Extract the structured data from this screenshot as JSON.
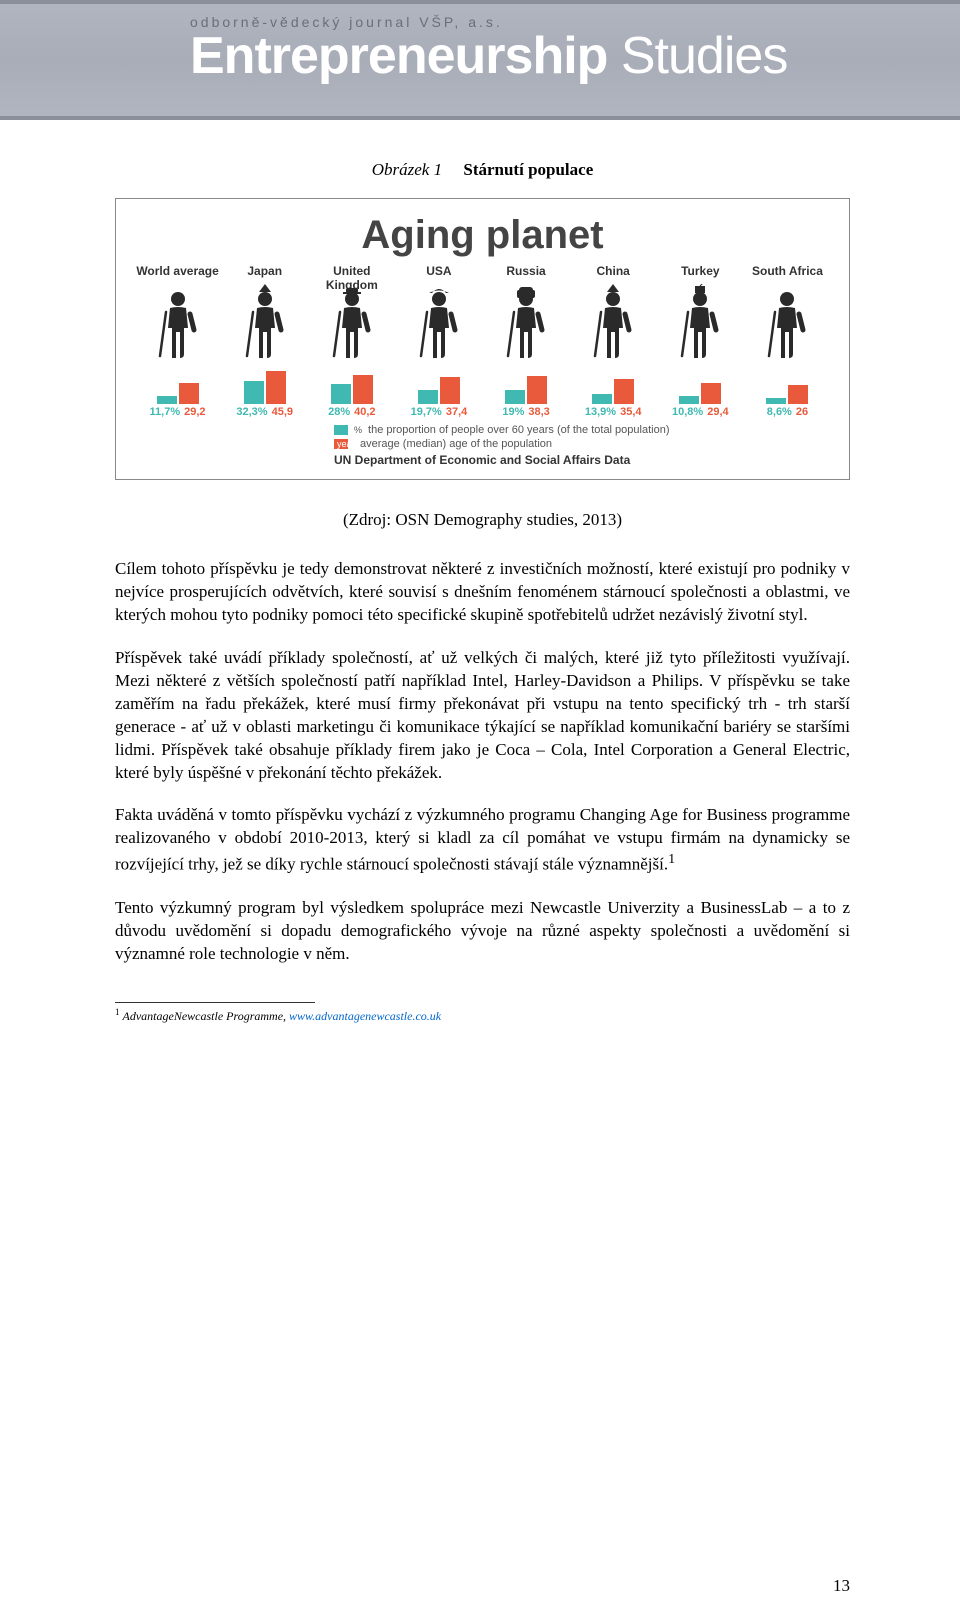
{
  "header": {
    "subtitle": "odborně-vědecký journal VŠP, a.s.",
    "title_part1": "Entrepreneurship",
    "title_part2": "Studies"
  },
  "figure": {
    "label": "Obrázek 1",
    "title": "Stárnutí populace"
  },
  "infographic": {
    "title": "Aging planet",
    "max_age": 50,
    "colors": {
      "proportion": "#3fb9b1",
      "age": "#e85a3b",
      "icon": "#2a2a2a"
    },
    "countries": [
      {
        "name": "World average",
        "proportion": 11.7,
        "age": 29.2,
        "hat": "none"
      },
      {
        "name": "Japan",
        "proportion": 32.3,
        "age": 45.9,
        "hat": "cone"
      },
      {
        "name": "United Kingdom",
        "proportion": 28.0,
        "age": 40.2,
        "hat": "bowler"
      },
      {
        "name": "USA",
        "proportion": 19.7,
        "age": 37.4,
        "hat": "cowboy"
      },
      {
        "name": "Russia",
        "proportion": 19.0,
        "age": 38.3,
        "hat": "ushanka"
      },
      {
        "name": "China",
        "proportion": 13.9,
        "age": 35.4,
        "hat": "cone"
      },
      {
        "name": "Turkey",
        "proportion": 10.8,
        "age": 29.4,
        "hat": "fez"
      },
      {
        "name": "South Africa",
        "proportion": 8.6,
        "age": 26.0,
        "hat": "none"
      }
    ],
    "legend": {
      "proportion": "the proportion of people over 60 years (of the total population)",
      "age": "average (median) age of the population",
      "proportion_label": "%",
      "age_label": "years",
      "source": "UN Department of Economic and Social Affairs Data"
    }
  },
  "source_line": "(Zdroj: OSN Demography studies, 2013)",
  "paragraphs": [
    "Cílem tohoto příspěvku je tedy demonstrovat některé z investičních možností, které existují pro podniky v nejvíce prosperujících odvětvích, které souvisí s dnešním fenoménem stárnoucí společnosti a oblastmi, ve kterých mohou tyto podniky pomoci této specifické skupině spotřebitelů udržet nezávislý životní styl.",
    "Příspěvek také uvádí příklady společností, ať už velkých či malých, které již tyto příležitosti využívají. Mezi některé z větších společností patří například Intel, Harley-Davidson a Philips. V příspěvku se take zaměřím na řadu překážek, které musí firmy překonávat při vstupu na tento specifický trh - trh starší generace - ať už v oblasti marketingu či komunikace týkající se například komunikační bariéry se staršími lidmi. Příspěvek také obsahuje příklady firem jako je Coca – Cola, Intel Corporation a General Electric, které byly úspěšné v překonání těchto překážek.",
    "Fakta uváděná v tomto příspěvku vychází z výzkumného programu Changing Age for Business programme realizovaného v období 2010-2013, který si kladl za cíl pomáhat ve vstupu firmám na dynamicky se rozvíjející trhy, jež se díky rychle stárnoucí společnosti stávají stále významnější.",
    "Tento výzkumný program byl výsledkem spolupráce mezi Newcastle Univerzity a BusinessLab – a to z důvodu uvědomění si dopadu demografického vývoje na různé aspekty společnosti a uvědomění si významné role technologie v něm."
  ],
  "footnote_marker_para_index": 2,
  "footnote": {
    "number": "1",
    "text": "AdvantageNewcastle Programme, ",
    "link": "www.advantagenewcastle.co.uk"
  },
  "page_number": "13"
}
